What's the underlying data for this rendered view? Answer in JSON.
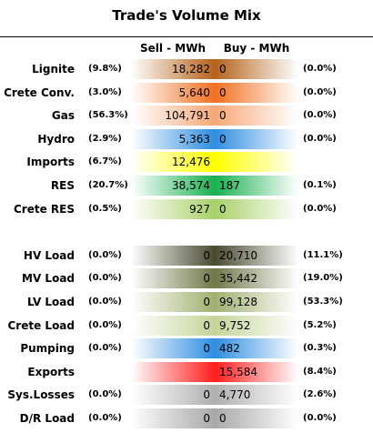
{
  "chart_data": {
    "type": "table",
    "title": "Trade's Volume Mix",
    "columns": [
      "Sell - MWh",
      "Buy - MWh"
    ],
    "rows": [
      {
        "label": "Lignite",
        "sell": "18,282",
        "sell_pct": "(9.8%)",
        "buy": "0",
        "buy_pct": "(0.0%)",
        "sell_color": "#b5621b",
        "buy_color": "#b5621b",
        "group": 1
      },
      {
        "label": "Crete Conv.",
        "sell": "5,640",
        "sell_pct": "(3.0%)",
        "buy": "0",
        "buy_pct": "(0.0%)",
        "sell_color": "#f07020",
        "buy_color": "#f07020",
        "group": 1
      },
      {
        "label": "Gas",
        "sell": "104,791",
        "sell_pct": "(56.3%)",
        "buy": "0",
        "buy_pct": "(0.0%)",
        "sell_color": "#f7a878",
        "buy_color": "#f7a878",
        "group": 1
      },
      {
        "label": "Hydro",
        "sell": "5,363",
        "sell_pct": "(2.9%)",
        "buy": "0",
        "buy_pct": "(0.0%)",
        "sell_color": "#2d8de0",
        "buy_color": "#2d8de0",
        "group": 1
      },
      {
        "label": "Imports",
        "sell": "12,476",
        "sell_pct": "(6.7%)",
        "buy": "",
        "buy_pct": "",
        "sell_color": "#ffff00",
        "buy_color": "#ffff00",
        "group": 1
      },
      {
        "label": "RES",
        "sell": "38,574",
        "sell_pct": "(20.7%)",
        "buy": "187",
        "buy_pct": "(0.1%)",
        "sell_color": "#18b050",
        "buy_color": "#18b050",
        "group": 1
      },
      {
        "label": "Crete RES",
        "sell": "927",
        "sell_pct": "(0.5%)",
        "buy": "0",
        "buy_pct": "(0.0%)",
        "sell_color": "#a8d068",
        "buy_color": "#a8d068",
        "group": 1
      },
      {
        "label": "HV Load",
        "sell": "0",
        "sell_pct": "(0.0%)",
        "buy": "20,710",
        "buy_pct": "(11.1%)",
        "sell_color": "#4a4a30",
        "buy_color": "#4a4a30",
        "group": 2
      },
      {
        "label": "MV Load",
        "sell": "0",
        "sell_pct": "(0.0%)",
        "buy": "35,442",
        "buy_pct": "(19.0%)",
        "sell_color": "#6f7848",
        "buy_color": "#6f7848",
        "group": 2
      },
      {
        "label": "LV Load",
        "sell": "0",
        "sell_pct": "(0.0%)",
        "buy": "99,128",
        "buy_pct": "(53.3%)",
        "sell_color": "#a0b070",
        "buy_color": "#a0b070",
        "group": 2
      },
      {
        "label": "Crete Load",
        "sell": "0",
        "sell_pct": "(0.0%)",
        "buy": "9,752",
        "buy_pct": "(5.2%)",
        "sell_color": "#c4d498",
        "buy_color": "#c4d498",
        "group": 2
      },
      {
        "label": "Pumping",
        "sell": "0",
        "sell_pct": "(0.0%)",
        "buy": "482",
        "buy_pct": "(0.3%)",
        "sell_color": "#2d8de0",
        "buy_color": "#2d8de0",
        "group": 2
      },
      {
        "label": "Exports",
        "sell": "",
        "sell_pct": "",
        "buy": "15,584",
        "buy_pct": "(8.4%)",
        "sell_color": "#ff1e1e",
        "buy_color": "#ff1e1e",
        "group": 2
      },
      {
        "label": "Sys.Losses",
        "sell": "0",
        "sell_pct": "(0.0%)",
        "buy": "4,770",
        "buy_pct": "(2.6%)",
        "sell_color": "#b0b0b0",
        "buy_color": "#b0b0b0",
        "group": 2
      },
      {
        "label": "D/R Load",
        "sell": "0",
        "sell_pct": "(0.0%)",
        "buy": "0",
        "buy_pct": "(0.0%)",
        "sell_color": "#a8a8a8",
        "buy_color": "#a8a8a8",
        "group": 2
      }
    ]
  }
}
